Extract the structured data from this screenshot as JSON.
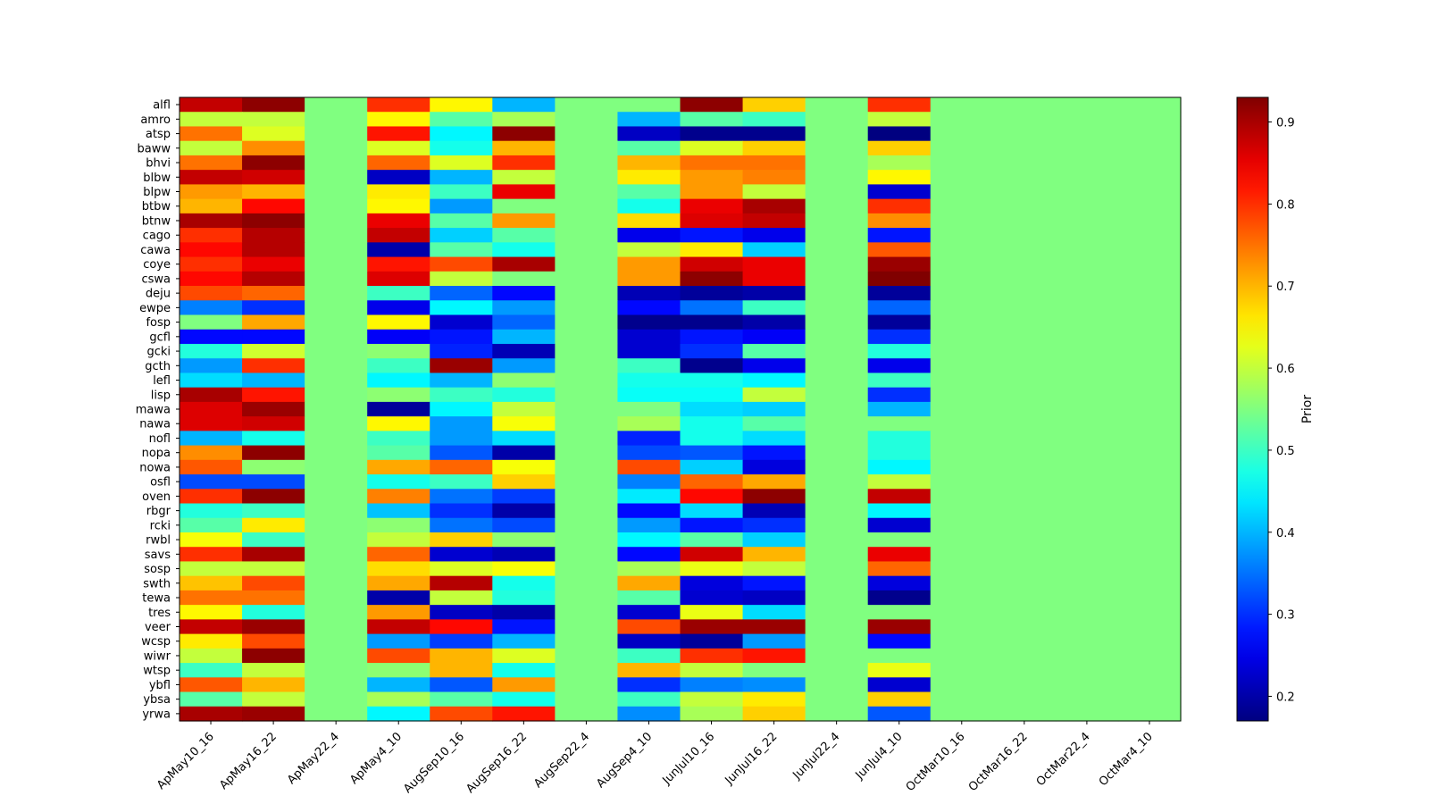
{
  "chart_data": {
    "type": "heatmap",
    "title": "",
    "xlabel": "",
    "ylabel": "",
    "colormap": "jet",
    "colorbar": {
      "label": "Prior",
      "vmin": 0.17,
      "vmax": 0.93,
      "ticks": [
        0.2,
        0.3,
        0.4,
        0.5,
        0.6,
        0.7,
        0.8,
        0.9
      ],
      "tick_labels": [
        "0.2",
        "0.3",
        "0.4",
        "0.5",
        "0.6",
        "0.7",
        "0.8",
        "0.9"
      ]
    },
    "columns": [
      "ApMay10_16",
      "ApMay16_22",
      "ApMay22_4",
      "ApMay4_10",
      "AugSep10_16",
      "AugSep16_22",
      "AugSep22_4",
      "AugSep4_10",
      "JunJul10_16",
      "JunJul16_22",
      "JunJul22_4",
      "JunJul4_10",
      "OctMar10_16",
      "OctMar16_22",
      "OctMar22_4",
      "OctMar4_10"
    ],
    "rows": [
      "alfl",
      "amro",
      "atsp",
      "baww",
      "bhvi",
      "blbw",
      "blpw",
      "btbw",
      "btnw",
      "cago",
      "cawa",
      "coye",
      "cswa",
      "deju",
      "ewpe",
      "fosp",
      "gcfl",
      "gcki",
      "gcth",
      "lefl",
      "lisp",
      "mawa",
      "nawa",
      "nofl",
      "nopa",
      "nowa",
      "osfl",
      "oven",
      "rbgr",
      "rcki",
      "rwbl",
      "savs",
      "sosp",
      "swth",
      "tewa",
      "tres",
      "veer",
      "wcsp",
      "wiwr",
      "wtsp",
      "ybfl",
      "ybsa",
      "yrwa"
    ],
    "values": [
      [
        0.88,
        0.92,
        0.55,
        0.8,
        0.65,
        0.4,
        0.55,
        0.55,
        0.92,
        0.68,
        0.55,
        0.8,
        0.55,
        0.55,
        0.55,
        0.55
      ],
      [
        0.6,
        0.6,
        0.55,
        0.65,
        0.52,
        0.58,
        0.55,
        0.4,
        0.52,
        0.5,
        0.55,
        0.6,
        0.55,
        0.55,
        0.55,
        0.55
      ],
      [
        0.75,
        0.62,
        0.55,
        0.82,
        0.45,
        0.92,
        0.55,
        0.22,
        0.18,
        0.18,
        0.55,
        0.17,
        0.55,
        0.55,
        0.55,
        0.55
      ],
      [
        0.6,
        0.73,
        0.55,
        0.62,
        0.47,
        0.7,
        0.55,
        0.52,
        0.62,
        0.68,
        0.55,
        0.68,
        0.55,
        0.55,
        0.55,
        0.55
      ],
      [
        0.75,
        0.92,
        0.55,
        0.76,
        0.62,
        0.8,
        0.55,
        0.7,
        0.75,
        0.75,
        0.55,
        0.58,
        0.55,
        0.55,
        0.55,
        0.55
      ],
      [
        0.88,
        0.87,
        0.55,
        0.22,
        0.4,
        0.6,
        0.55,
        0.66,
        0.72,
        0.74,
        0.55,
        0.65,
        0.55,
        0.55,
        0.55,
        0.55
      ],
      [
        0.72,
        0.7,
        0.55,
        0.66,
        0.5,
        0.85,
        0.55,
        0.52,
        0.72,
        0.6,
        0.55,
        0.23,
        0.55,
        0.55,
        0.55,
        0.55
      ],
      [
        0.7,
        0.83,
        0.55,
        0.65,
        0.38,
        0.55,
        0.55,
        0.47,
        0.85,
        0.9,
        0.55,
        0.8,
        0.55,
        0.55,
        0.55,
        0.55
      ],
      [
        0.9,
        0.92,
        0.55,
        0.85,
        0.52,
        0.72,
        0.55,
        0.67,
        0.86,
        0.88,
        0.55,
        0.73,
        0.55,
        0.55,
        0.55,
        0.55
      ],
      [
        0.8,
        0.89,
        0.55,
        0.88,
        0.42,
        0.52,
        0.55,
        0.25,
        0.28,
        0.25,
        0.55,
        0.28,
        0.55,
        0.55,
        0.55,
        0.55
      ],
      [
        0.83,
        0.89,
        0.55,
        0.2,
        0.52,
        0.47,
        0.55,
        0.6,
        0.66,
        0.42,
        0.55,
        0.77,
        0.55,
        0.55,
        0.55,
        0.55
      ],
      [
        0.8,
        0.85,
        0.55,
        0.82,
        0.78,
        0.9,
        0.55,
        0.72,
        0.87,
        0.85,
        0.55,
        0.91,
        0.55,
        0.55,
        0.55,
        0.55
      ],
      [
        0.83,
        0.89,
        0.55,
        0.86,
        0.6,
        0.55,
        0.55,
        0.72,
        0.92,
        0.85,
        0.55,
        0.93,
        0.55,
        0.55,
        0.55,
        0.55
      ],
      [
        0.78,
        0.76,
        0.55,
        0.5,
        0.34,
        0.27,
        0.55,
        0.21,
        0.19,
        0.2,
        0.55,
        0.19,
        0.55,
        0.55,
        0.55,
        0.55
      ],
      [
        0.36,
        0.3,
        0.55,
        0.25,
        0.45,
        0.38,
        0.55,
        0.27,
        0.35,
        0.5,
        0.55,
        0.34,
        0.55,
        0.55,
        0.55,
        0.55
      ],
      [
        0.55,
        0.71,
        0.55,
        0.65,
        0.23,
        0.34,
        0.55,
        0.18,
        0.18,
        0.2,
        0.55,
        0.19,
        0.55,
        0.55,
        0.55,
        0.55
      ],
      [
        0.27,
        0.27,
        0.55,
        0.26,
        0.28,
        0.4,
        0.55,
        0.23,
        0.28,
        0.26,
        0.55,
        0.3,
        0.55,
        0.55,
        0.55,
        0.55
      ],
      [
        0.48,
        0.61,
        0.55,
        0.56,
        0.29,
        0.21,
        0.55,
        0.23,
        0.3,
        0.52,
        0.55,
        0.48,
        0.55,
        0.55,
        0.55,
        0.55
      ],
      [
        0.38,
        0.8,
        0.55,
        0.5,
        0.91,
        0.38,
        0.55,
        0.5,
        0.18,
        0.25,
        0.55,
        0.25,
        0.55,
        0.55,
        0.55,
        0.55
      ],
      [
        0.43,
        0.4,
        0.55,
        0.45,
        0.4,
        0.56,
        0.55,
        0.47,
        0.47,
        0.45,
        0.55,
        0.5,
        0.55,
        0.55,
        0.55,
        0.55
      ],
      [
        0.9,
        0.82,
        0.55,
        0.56,
        0.5,
        0.48,
        0.55,
        0.46,
        0.46,
        0.6,
        0.55,
        0.3,
        0.55,
        0.55,
        0.55,
        0.55
      ],
      [
        0.86,
        0.91,
        0.55,
        0.19,
        0.45,
        0.6,
        0.55,
        0.55,
        0.43,
        0.42,
        0.55,
        0.4,
        0.55,
        0.55,
        0.55,
        0.55
      ],
      [
        0.86,
        0.87,
        0.55,
        0.65,
        0.38,
        0.64,
        0.55,
        0.58,
        0.47,
        0.52,
        0.55,
        0.55,
        0.55,
        0.55,
        0.55,
        0.55
      ],
      [
        0.4,
        0.47,
        0.55,
        0.5,
        0.38,
        0.43,
        0.55,
        0.29,
        0.47,
        0.43,
        0.55,
        0.48,
        0.55,
        0.55,
        0.55,
        0.55
      ],
      [
        0.73,
        0.92,
        0.55,
        0.52,
        0.33,
        0.2,
        0.55,
        0.32,
        0.33,
        0.28,
        0.55,
        0.48,
        0.55,
        0.55,
        0.55,
        0.55
      ],
      [
        0.77,
        0.56,
        0.55,
        0.71,
        0.76,
        0.64,
        0.55,
        0.78,
        0.42,
        0.24,
        0.55,
        0.45,
        0.55,
        0.55,
        0.55,
        0.55
      ],
      [
        0.32,
        0.32,
        0.55,
        0.47,
        0.5,
        0.68,
        0.55,
        0.36,
        0.76,
        0.71,
        0.55,
        0.6,
        0.55,
        0.55,
        0.55,
        0.55
      ],
      [
        0.8,
        0.92,
        0.55,
        0.74,
        0.35,
        0.31,
        0.55,
        0.44,
        0.83,
        0.92,
        0.55,
        0.88,
        0.55,
        0.55,
        0.55,
        0.55
      ],
      [
        0.48,
        0.5,
        0.55,
        0.41,
        0.3,
        0.2,
        0.55,
        0.27,
        0.43,
        0.21,
        0.55,
        0.45,
        0.55,
        0.55,
        0.55,
        0.55
      ],
      [
        0.52,
        0.66,
        0.55,
        0.56,
        0.35,
        0.32,
        0.55,
        0.38,
        0.28,
        0.3,
        0.55,
        0.23,
        0.55,
        0.55,
        0.55,
        0.55
      ],
      [
        0.64,
        0.5,
        0.55,
        0.6,
        0.68,
        0.56,
        0.55,
        0.45,
        0.52,
        0.42,
        0.55,
        0.55,
        0.55,
        0.55,
        0.55,
        0.55
      ],
      [
        0.8,
        0.9,
        0.55,
        0.76,
        0.23,
        0.21,
        0.55,
        0.27,
        0.87,
        0.7,
        0.55,
        0.85,
        0.55,
        0.55,
        0.55,
        0.55
      ],
      [
        0.6,
        0.6,
        0.55,
        0.67,
        0.62,
        0.64,
        0.55,
        0.58,
        0.63,
        0.6,
        0.55,
        0.76,
        0.55,
        0.55,
        0.55,
        0.55
      ],
      [
        0.69,
        0.78,
        0.55,
        0.71,
        0.89,
        0.47,
        0.55,
        0.71,
        0.24,
        0.28,
        0.55,
        0.24,
        0.55,
        0.55,
        0.55,
        0.55
      ],
      [
        0.75,
        0.75,
        0.55,
        0.2,
        0.6,
        0.48,
        0.55,
        0.52,
        0.23,
        0.22,
        0.55,
        0.18,
        0.55,
        0.55,
        0.55,
        0.55
      ],
      [
        0.65,
        0.48,
        0.55,
        0.72,
        0.22,
        0.2,
        0.55,
        0.23,
        0.63,
        0.43,
        0.55,
        0.55,
        0.55,
        0.55,
        0.55,
        0.55
      ],
      [
        0.88,
        0.91,
        0.55,
        0.88,
        0.83,
        0.28,
        0.55,
        0.78,
        0.91,
        0.91,
        0.55,
        0.91,
        0.55,
        0.55,
        0.55,
        0.55
      ],
      [
        0.66,
        0.78,
        0.55,
        0.38,
        0.31,
        0.4,
        0.55,
        0.22,
        0.19,
        0.38,
        0.55,
        0.27,
        0.55,
        0.55,
        0.55,
        0.55
      ],
      [
        0.6,
        0.92,
        0.55,
        0.78,
        0.7,
        0.62,
        0.55,
        0.5,
        0.8,
        0.82,
        0.55,
        0.55,
        0.55,
        0.55,
        0.55,
        0.55
      ],
      [
        0.5,
        0.6,
        0.55,
        0.56,
        0.7,
        0.47,
        0.55,
        0.7,
        0.6,
        0.55,
        0.55,
        0.63,
        0.55,
        0.55,
        0.55,
        0.55
      ],
      [
        0.77,
        0.7,
        0.55,
        0.4,
        0.33,
        0.72,
        0.55,
        0.3,
        0.36,
        0.37,
        0.55,
        0.23,
        0.55,
        0.55,
        0.55,
        0.55
      ],
      [
        0.52,
        0.6,
        0.55,
        0.58,
        0.52,
        0.47,
        0.55,
        0.5,
        0.6,
        0.66,
        0.55,
        0.68,
        0.55,
        0.55,
        0.55,
        0.55
      ],
      [
        0.9,
        0.91,
        0.55,
        0.45,
        0.78,
        0.82,
        0.55,
        0.37,
        0.58,
        0.68,
        0.55,
        0.33,
        0.55,
        0.55,
        0.55,
        0.55
      ]
    ]
  }
}
